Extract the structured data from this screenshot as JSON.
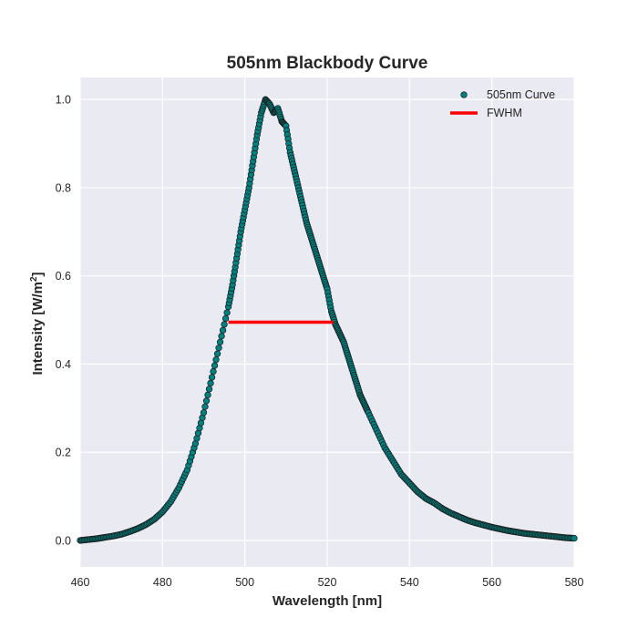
{
  "chart_data": {
    "type": "scatter",
    "title": "505nm Blackbody Curve",
    "xlabel": "Wavelength [nm]",
    "ylabel_main": "Intensity [W/m",
    "ylabel_sup": "2",
    "ylabel_close": "]",
    "xlim": [
      460,
      580
    ],
    "ylim": [
      -0.06,
      1.05
    ],
    "xticks": [
      460,
      480,
      500,
      520,
      540,
      560,
      580
    ],
    "yticks": [
      0.0,
      0.2,
      0.4,
      0.6,
      0.8,
      1.0
    ],
    "ytick_labels": [
      "0.0",
      "0.2",
      "0.4",
      "0.6",
      "0.8",
      "1.0"
    ],
    "grid": true,
    "legend_position": "top-right",
    "series": [
      {
        "name": "505nm Curve",
        "kind": "scatter",
        "color": "#008080",
        "edge_color": "#1a1a1a",
        "x": [
          460,
          462,
          464,
          466,
          468,
          470,
          472,
          474,
          476,
          478,
          480,
          482,
          484,
          486,
          488,
          490,
          492,
          494,
          496,
          497,
          498,
          499,
          500,
          501,
          502,
          503,
          504,
          505,
          506,
          507,
          508,
          509,
          510,
          511,
          512,
          513,
          514,
          515,
          516,
          517,
          518,
          519,
          520,
          521,
          522,
          523,
          524,
          525,
          526,
          527,
          528,
          529,
          530,
          532,
          534,
          536,
          538,
          540,
          542,
          544,
          546,
          548,
          550,
          552,
          554,
          556,
          558,
          560,
          562,
          564,
          566,
          568,
          570,
          572,
          574,
          576,
          578,
          580
        ],
        "y": [
          0.0,
          0.002,
          0.004,
          0.007,
          0.01,
          0.014,
          0.02,
          0.027,
          0.036,
          0.048,
          0.065,
          0.088,
          0.12,
          0.16,
          0.22,
          0.29,
          0.37,
          0.45,
          0.53,
          0.58,
          0.64,
          0.7,
          0.75,
          0.8,
          0.86,
          0.92,
          0.97,
          1.0,
          0.99,
          0.97,
          0.98,
          0.95,
          0.94,
          0.88,
          0.84,
          0.8,
          0.76,
          0.72,
          0.69,
          0.66,
          0.63,
          0.6,
          0.57,
          0.52,
          0.49,
          0.47,
          0.45,
          0.42,
          0.39,
          0.36,
          0.33,
          0.31,
          0.29,
          0.25,
          0.21,
          0.18,
          0.15,
          0.13,
          0.11,
          0.095,
          0.085,
          0.072,
          0.062,
          0.054,
          0.046,
          0.04,
          0.035,
          0.03,
          0.026,
          0.022,
          0.019,
          0.016,
          0.014,
          0.012,
          0.01,
          0.008,
          0.006,
          0.005
        ]
      },
      {
        "name": "FWHM",
        "kind": "line",
        "color": "#ff0000",
        "x": [
          496,
          521.5
        ],
        "y": [
          0.495,
          0.495
        ]
      }
    ]
  }
}
